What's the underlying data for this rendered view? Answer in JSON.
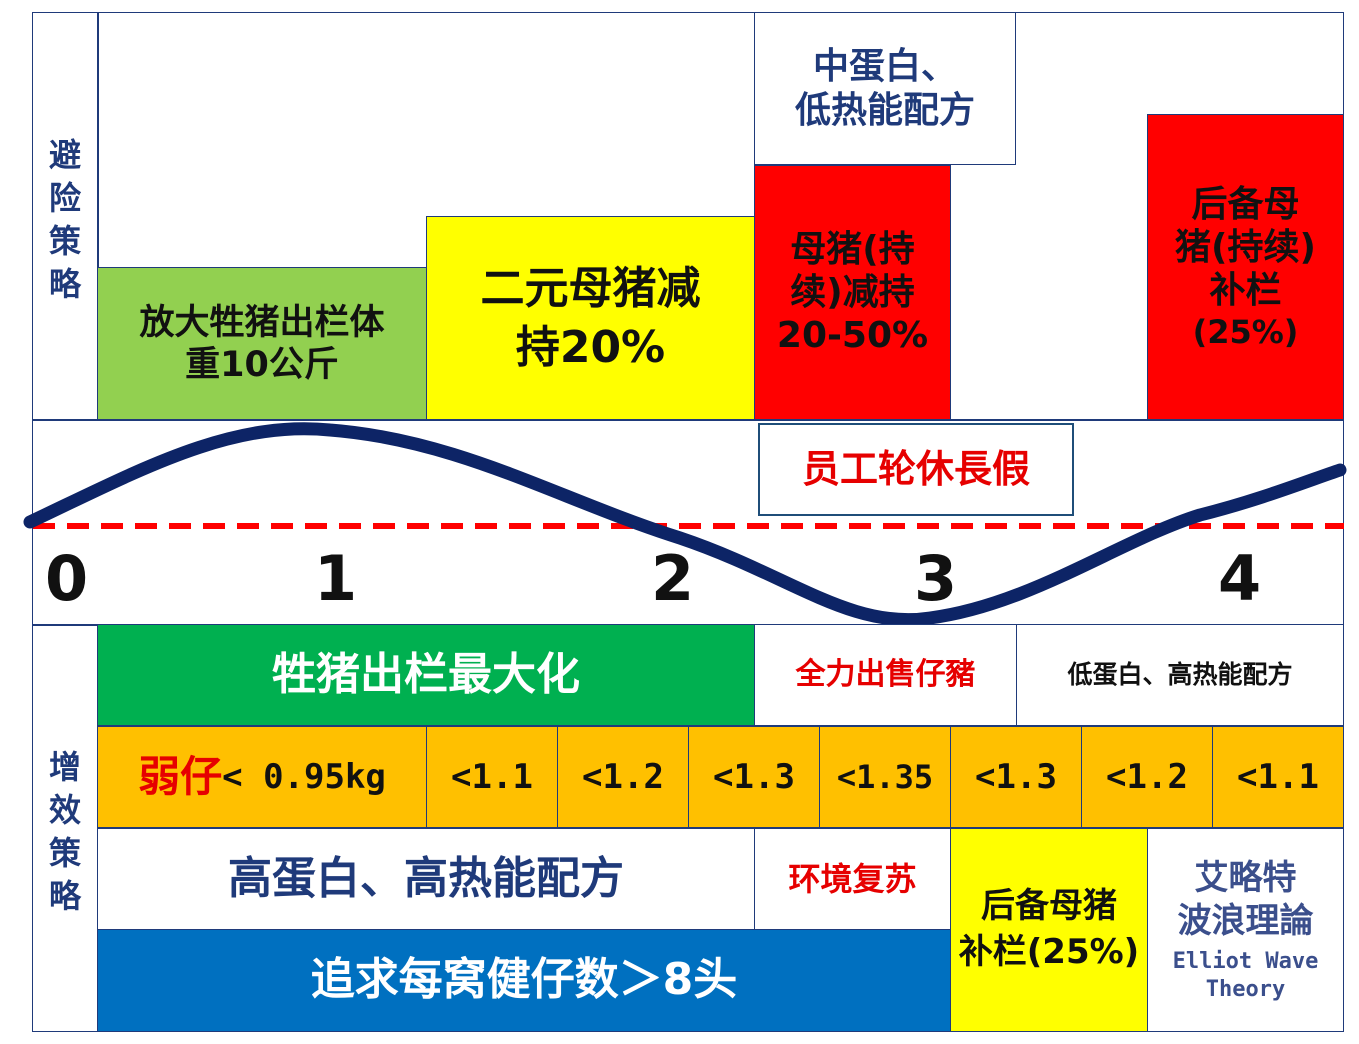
{
  "risk_strategy": {
    "side_label": [
      "避",
      "险",
      "策",
      "略"
    ],
    "mid_protein": [
      "中蛋白、",
      "低热能配方"
    ],
    "enlarge_weight": [
      "放大牲猪出栏体",
      "重10公斤"
    ],
    "two_way_sow": [
      "二元母猪减",
      "持20%"
    ],
    "sow_reduce": [
      "母猪(持",
      "续)减持",
      "20-50%"
    ],
    "gilt_restock_top": [
      "后备母",
      "猪(持续)",
      "补栏",
      "(25%)"
    ],
    "staff_leave": "员工轮休長假"
  },
  "axis": {
    "ticks": [
      "0",
      "1",
      "2",
      "3",
      "4"
    ]
  },
  "gain_strategy": {
    "side_label": [
      "增",
      "效",
      "策",
      "略"
    ],
    "max_market": "牲猪出栏最大化",
    "sell_piglets": "全力出售仔豬",
    "low_protein": "低蛋白、高热能配方",
    "weak_piglet_prefix": "弱仔",
    "weak_piglet_value": "< 0.95kg",
    "thresholds": [
      "<1.1",
      "<1.2",
      "<1.3",
      "<1.35",
      "<1.3",
      "<1.2",
      "<1.1"
    ],
    "high_protein": "高蛋白、高热能配方",
    "env_recovery": "环境复苏",
    "pursue_litter": "追求每窝健仔数＞8头",
    "gilt_restock_bottom": [
      "后备母猪",
      "补栏(25%)"
    ],
    "elliot": [
      "艾略特",
      "波浪理論",
      "Elliot Wave",
      "Theory"
    ]
  },
  "colors": {
    "navy": "#1f3a7a",
    "light_green": "#92d050",
    "yellow": "#ffff00",
    "red": "#ff0000",
    "green": "#00b050",
    "orange": "#ffc000",
    "blue": "#0070c0",
    "dashed_line": "#ff0000"
  }
}
